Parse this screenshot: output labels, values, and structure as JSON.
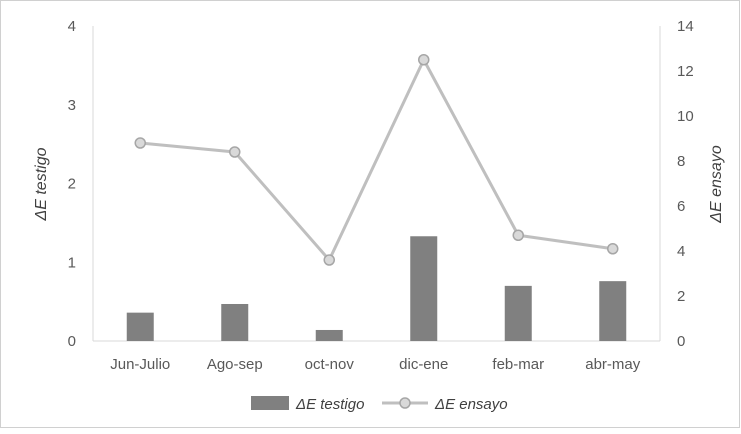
{
  "chart_data": {
    "type": "bar",
    "categories": [
      "Jun-Julio",
      "Ago-sep",
      "oct-nov",
      "dic-ene",
      "feb-mar",
      "abr-may"
    ],
    "series": [
      {
        "name": "ΔE testigo",
        "type": "bar",
        "axis": "left",
        "color": "#808080",
        "values": [
          0.36,
          0.47,
          0.14,
          1.33,
          0.7,
          0.76
        ]
      },
      {
        "name": "ΔE ensayo",
        "type": "line",
        "axis": "right",
        "color": "#bfbfbf",
        "marker_fill": "#d9d9d9",
        "values": [
          8.8,
          8.4,
          3.6,
          12.5,
          4.7,
          4.1
        ]
      }
    ],
    "ylabel": "ΔE testigo",
    "y2label": "ΔE ensayo",
    "ylim": [
      0,
      4
    ],
    "y2lim": [
      0,
      14
    ],
    "yticks": [
      "0",
      "1",
      "2",
      "3",
      "4"
    ],
    "y2ticks": [
      "0",
      "2",
      "4",
      "6",
      "8",
      "10",
      "12",
      "14"
    ],
    "grid": false,
    "legend": "bottom",
    "legend_entries": [
      "ΔE testigo",
      "ΔE ensayo"
    ]
  }
}
